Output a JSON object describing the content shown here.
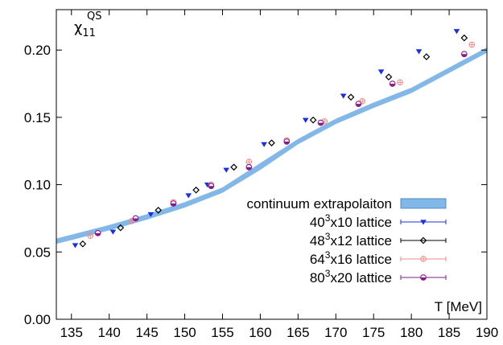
{
  "chart_data": {
    "type": "scatter",
    "title": "",
    "ylabel": "",
    "xlabel": "T [MeV]",
    "symbol": {
      "base": "χ",
      "sub": "11",
      "sup": "QS"
    },
    "xlim": [
      133,
      190
    ],
    "ylim": [
      0.0,
      0.23
    ],
    "xticks": [
      135,
      140,
      145,
      150,
      155,
      160,
      165,
      170,
      175,
      180,
      185,
      190
    ],
    "yticks": [
      0.0,
      0.05,
      0.1,
      0.15,
      0.2
    ],
    "ytick_labels": [
      "0.00",
      "0.05",
      "0.10",
      "0.15",
      "0.20"
    ],
    "grid": false,
    "legend_position": "lower-right",
    "band": {
      "name": "continuum extrapolaiton",
      "color": "#82b8e8",
      "x": [
        133,
        140,
        145,
        150,
        155,
        160,
        165,
        170,
        175,
        180,
        185,
        190
      ],
      "y_low": [
        0.056,
        0.066,
        0.074,
        0.083,
        0.094,
        0.111,
        0.13,
        0.145,
        0.157,
        0.168,
        0.183,
        0.198
      ],
      "y_high": [
        0.06,
        0.07,
        0.078,
        0.087,
        0.098,
        0.116,
        0.134,
        0.149,
        0.161,
        0.172,
        0.187,
        0.202
      ]
    },
    "series": [
      {
        "name_base": "40",
        "name_sup": "3",
        "name_rest": "x10 lattice",
        "color": "#1a2fe0",
        "marker": "triangle-down",
        "x": [
          135.5,
          140.5,
          145.5,
          150.5,
          153.0,
          155.5,
          160.5,
          166.0,
          171.0,
          176.0,
          181.0,
          186.0
        ],
        "y": [
          0.055,
          0.065,
          0.078,
          0.092,
          0.1,
          0.111,
          0.13,
          0.148,
          0.166,
          0.184,
          0.199,
          0.214
        ]
      },
      {
        "name_base": "48",
        "name_sup": "3",
        "name_rest": "x12 lattice",
        "color": "#000000",
        "marker": "diamond",
        "x": [
          136.5,
          141.5,
          146.5,
          151.5,
          156.5,
          161.5,
          167.0,
          172.0,
          177.0,
          182.0,
          187.0
        ],
        "y": [
          0.056,
          0.068,
          0.081,
          0.096,
          0.113,
          0.131,
          0.148,
          0.165,
          0.18,
          0.195,
          0.209
        ]
      },
      {
        "name_base": "64",
        "name_sup": "3",
        "name_rest": "x16 lattice",
        "color": "#f08888",
        "marker": "circle-cross",
        "x": [
          137.5,
          143.0,
          148.5,
          153.5,
          158.5,
          163.5,
          168.5,
          173.5,
          178.5,
          188.0
        ],
        "y": [
          0.062,
          0.073,
          0.087,
          0.1,
          0.117,
          0.133,
          0.147,
          0.162,
          0.176,
          0.204
        ]
      },
      {
        "name_base": "80",
        "name_sup": "3",
        "name_rest": "x20 lattice",
        "color": "#8a1a8a",
        "marker": "circle-half",
        "x": [
          138.5,
          143.5,
          148.5,
          153.5,
          158.5,
          163.5,
          168.0,
          173.0,
          177.5,
          187.0
        ],
        "y": [
          0.064,
          0.075,
          0.086,
          0.099,
          0.113,
          0.132,
          0.146,
          0.16,
          0.175,
          0.197
        ]
      }
    ]
  }
}
